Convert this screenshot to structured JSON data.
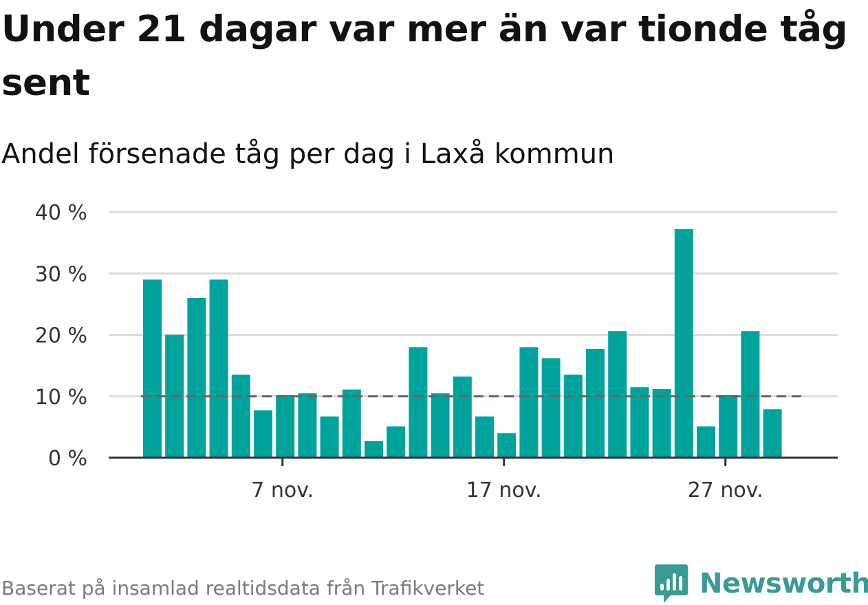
{
  "title": "Under 21 dagar var mer än var tionde tåg sent",
  "subtitle": "Andel försenade tåg per dag i Laxå kommun",
  "footer": {
    "source": "Baserat på insamlad realtidsdata från Trafikverket",
    "brand": "Newsworthy",
    "brand_icon": "bar-chart-speech-bubble-icon"
  },
  "colors": {
    "bar": "#00a39b",
    "grid": "#dcdcdc",
    "axis": "#333333",
    "reference_line": "#666666",
    "brand": "#3a9a95"
  },
  "chart_data": {
    "type": "bar",
    "title": "Under 21 dagar var mer än var tionde tåg sent",
    "subtitle": "Andel försenade tåg per dag i Laxå kommun",
    "xlabel": "",
    "ylabel": "",
    "x": [
      "2024-11-01",
      "2024-11-02",
      "2024-11-03",
      "2024-11-04",
      "2024-11-05",
      "2024-11-06",
      "2024-11-07",
      "2024-11-08",
      "2024-11-09",
      "2024-11-10",
      "2024-11-11",
      "2024-11-12",
      "2024-11-13",
      "2024-11-14",
      "2024-11-15",
      "2024-11-16",
      "2024-11-17",
      "2024-11-18",
      "2024-11-19",
      "2024-11-20",
      "2024-11-21",
      "2024-11-22",
      "2024-11-23",
      "2024-11-24",
      "2024-11-25",
      "2024-11-26",
      "2024-11-27",
      "2024-11-28",
      "2024-11-29",
      "2024-11-30"
    ],
    "values": [
      29,
      20,
      26,
      29,
      13.5,
      7.7,
      10.2,
      10.5,
      6.7,
      11.1,
      2.7,
      5.1,
      18,
      10.5,
      13.2,
      6.7,
      4,
      18,
      16.2,
      13.5,
      17.7,
      20.6,
      11.5,
      11.2,
      37.2,
      5.1,
      10.2,
      20.6,
      7.9,
      null
    ],
    "ylim": [
      0,
      40
    ],
    "yticks": [
      0,
      10,
      20,
      30,
      40
    ],
    "ytick_labels": [
      "0 %",
      "10 %",
      "20 %",
      "30 %",
      "40 %"
    ],
    "xticks": [
      {
        "date_index": 6,
        "label": "7 nov."
      },
      {
        "date_index": 16,
        "label": "17 nov."
      },
      {
        "date_index": 26,
        "label": "27 nov."
      }
    ],
    "reference_line": {
      "value": 10,
      "style": "dashed"
    },
    "grid": true,
    "legend": "none"
  }
}
